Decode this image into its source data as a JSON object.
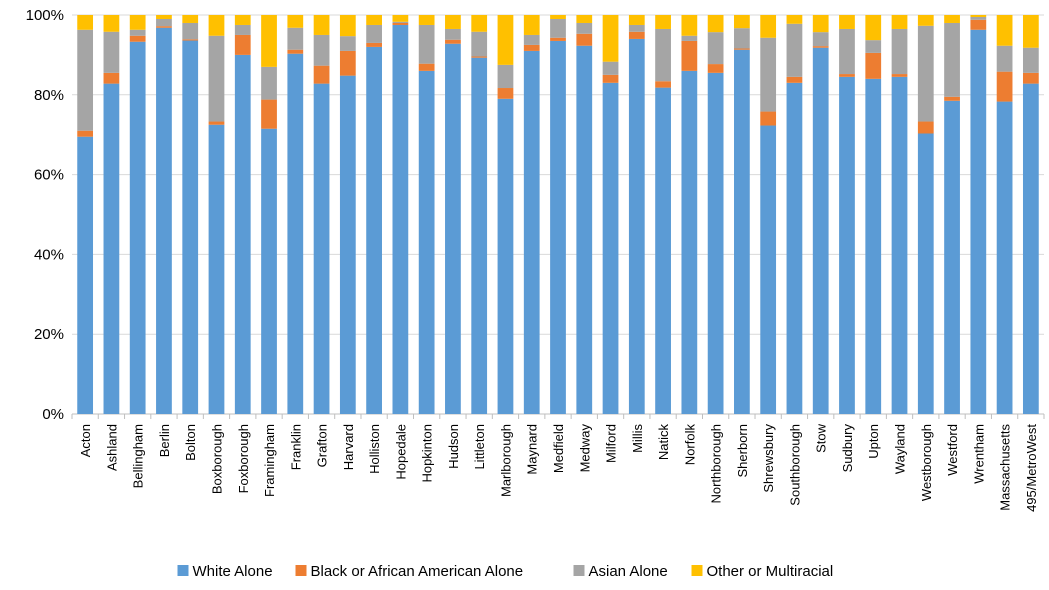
{
  "chart_data": {
    "type": "bar",
    "stacked": true,
    "normalized": true,
    "title": "",
    "xlabel": "",
    "ylabel": "",
    "ylim": [
      0,
      100
    ],
    "yticks": [
      "0%",
      "20%",
      "40%",
      "60%",
      "80%",
      "100%"
    ],
    "grid": true,
    "legend_position": "bottom",
    "categories": [
      "Acton",
      "Ashland",
      "Bellingham",
      "Berlin",
      "Bolton",
      "Boxborough",
      "Foxborough",
      "Framingham",
      "Franklin",
      "Grafton",
      "Harvard",
      "Holliston",
      "Hopedale",
      "Hopkinton",
      "Hudson",
      "Littleton",
      "Marlborough",
      "Maynard",
      "Medfield",
      "Medway",
      "Milford",
      "Millis",
      "Natick",
      "Norfolk",
      "Northborough",
      "Sherborn",
      "Shrewsbury",
      "Southborough",
      "Stow",
      "Sudbury",
      "Upton",
      "Wayland",
      "Westborough",
      "Westford",
      "Wrentham",
      "Massachusetts",
      "495/MetroWest"
    ],
    "series": [
      {
        "name": "White Alone",
        "color": "#5B9BD5",
        "values": [
          69.5,
          82.8,
          93.3,
          96.8,
          93.6,
          72.5,
          90.0,
          71.5,
          90.3,
          82.8,
          84.8,
          92.0,
          97.5,
          86.0,
          92.8,
          89.3,
          79.0,
          91.0,
          93.5,
          92.3,
          83.0,
          94.0,
          81.8,
          86.0,
          85.5,
          91.3,
          72.3,
          83.0,
          91.8,
          84.5,
          84.0,
          84.5,
          70.3,
          78.5,
          96.3,
          78.3,
          82.8
        ]
      },
      {
        "name": "Black or African American Alone",
        "color": "#ED7D31",
        "values": [
          1.5,
          2.7,
          1.5,
          0.4,
          0.3,
          0.8,
          5.0,
          7.3,
          1.0,
          4.5,
          6.2,
          1.0,
          0.5,
          1.8,
          1.0,
          0.3,
          2.7,
          1.5,
          0.8,
          3.0,
          2.0,
          1.8,
          1.6,
          7.5,
          2.2,
          0.3,
          3.5,
          1.5,
          0.4,
          0.7,
          6.5,
          0.7,
          3.0,
          1.0,
          2.5,
          7.5,
          2.7
        ]
      },
      {
        "name": "Asian Alone",
        "color": "#A5A5A5",
        "values": [
          25.3,
          10.3,
          1.5,
          1.8,
          4.1,
          21.5,
          2.5,
          8.2,
          5.5,
          7.7,
          3.7,
          4.5,
          0.3,
          9.7,
          2.7,
          6.2,
          5.8,
          2.5,
          4.7,
          2.7,
          3.3,
          1.7,
          13.1,
          1.3,
          8.0,
          5.1,
          18.5,
          13.3,
          3.5,
          11.3,
          3.2,
          11.3,
          24.0,
          18.5,
          0.7,
          6.5,
          6.3
        ]
      },
      {
        "name": "Other or Multiracial",
        "color": "#FFC000",
        "values": [
          3.7,
          4.2,
          3.7,
          1.0,
          2.0,
          5.2,
          2.5,
          13.0,
          3.2,
          5.0,
          5.3,
          2.5,
          1.7,
          2.5,
          3.5,
          4.2,
          12.5,
          5.0,
          1.0,
          2.0,
          11.7,
          2.5,
          3.5,
          5.2,
          4.3,
          3.3,
          5.7,
          2.2,
          4.3,
          3.5,
          6.3,
          3.5,
          2.7,
          2.0,
          0.5,
          7.7,
          8.2
        ]
      }
    ]
  }
}
